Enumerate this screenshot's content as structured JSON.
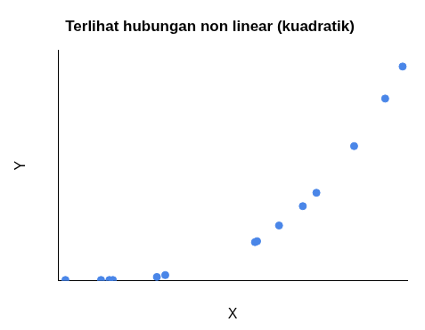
{
  "chart_data": {
    "type": "scatter",
    "title": "Terlihat hubungan non linear (kuadratik)",
    "x_label": "X",
    "y_label": "Y",
    "x": [
      0.21,
      1.23,
      1.47,
      1.57,
      2.83,
      3.07,
      5.64,
      5.7,
      6.33,
      7.01,
      7.4,
      8.48,
      9.37,
      9.87
    ],
    "values": [
      0.4,
      0.4,
      0.4,
      0.4,
      1.7,
      2.5,
      16.8,
      17.2,
      24.0,
      32.4,
      38.2,
      58.4,
      79.0,
      92.9
    ],
    "color": "#4a86e8",
    "xlim": [
      0,
      10
    ],
    "ylim": [
      0,
      100
    ],
    "grid": false,
    "tick_labels": false
  }
}
